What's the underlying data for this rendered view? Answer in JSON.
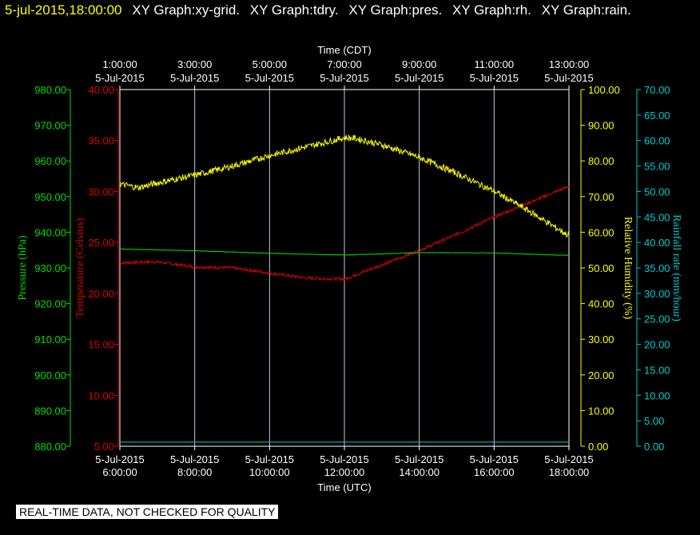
{
  "header": {
    "timestamp": "5-jul-2015,18:00:00",
    "graphs": [
      "XY Graph:xy-grid.",
      "XY Graph:tdry.",
      "XY Graph:pres.",
      "XY Graph:rh.",
      "XY Graph:rain."
    ]
  },
  "footer": {
    "notice": "REAL-TIME DATA, NOT CHECKED FOR QUALITY"
  },
  "colors": {
    "background": "#000000",
    "pressure": "#00dd00",
    "temperature": "#dd0000",
    "humidity": "#ffff00",
    "rain": "#00cccc",
    "grid": "#c8c8e0",
    "axis_text": "#ffffff"
  },
  "chart_data": {
    "type": "line",
    "title": "",
    "grid": true,
    "x_bottom": {
      "label": "Time (UTC)",
      "ticks": [
        {
          "hour": 6,
          "date": "5-Jul-2015",
          "time": "6:00:00"
        },
        {
          "hour": 8,
          "date": "5-Jul-2015",
          "time": "8:00:00"
        },
        {
          "hour": 10,
          "date": "5-Jul-2015",
          "time": "10:00:00"
        },
        {
          "hour": 12,
          "date": "5-Jul-2015",
          "time": "12:00:00"
        },
        {
          "hour": 14,
          "date": "5-Jul-2015",
          "time": "14:00:00"
        },
        {
          "hour": 16,
          "date": "5-Jul-2015",
          "time": "16:00:00"
        },
        {
          "hour": 18,
          "date": "5-Jul-2015",
          "time": "18:00:00"
        }
      ],
      "range": [
        6,
        18
      ]
    },
    "x_top": {
      "label": "Time (CDT)",
      "ticks": [
        {
          "time": "1:00:00",
          "date": "5-Jul-2015"
        },
        {
          "time": "3:00:00",
          "date": "5-Jul-2015"
        },
        {
          "time": "5:00:00",
          "date": "5-Jul-2015"
        },
        {
          "time": "7:00:00",
          "date": "5-Jul-2015"
        },
        {
          "time": "9:00:00",
          "date": "5-Jul-2015"
        },
        {
          "time": "11:00:00",
          "date": "5-Jul-2015"
        },
        {
          "time": "13:00:00",
          "date": "5-Jul-2015"
        }
      ]
    },
    "y_axes": {
      "pressure": {
        "label": "Pressure (hPa)",
        "range": [
          880,
          980
        ],
        "ticks": [
          "880.00",
          "890.00",
          "900.00",
          "910.00",
          "920.00",
          "930.00",
          "940.00",
          "950.00",
          "960.00",
          "970.00",
          "980.00"
        ]
      },
      "temperature": {
        "label": "Temperature (Celsius)",
        "range": [
          5,
          40
        ],
        "ticks": [
          "5.00",
          "10.00",
          "15.00",
          "20.00",
          "25.00",
          "30.00",
          "35.00",
          "40.00"
        ]
      },
      "humidity": {
        "label": "Relative Humidity (%)",
        "range": [
          0,
          100
        ],
        "ticks": [
          "0.00",
          "10.00",
          "20.00",
          "30.00",
          "40.00",
          "50.00",
          "60.00",
          "70.00",
          "80.00",
          "90.00",
          "100.00"
        ]
      },
      "rain": {
        "label": "Rainfall rate (mm/hour)",
        "range": [
          0,
          70
        ],
        "ticks": [
          "0.00",
          "5.00",
          "10.00",
          "15.00",
          "20.00",
          "25.00",
          "30.00",
          "35.00",
          "40.00",
          "45.00",
          "50.00",
          "55.00",
          "60.00",
          "65.00",
          "70.00"
        ]
      }
    },
    "series": [
      {
        "name": "tdry",
        "axis": "temperature",
        "points": [
          [
            6,
            23.0
          ],
          [
            7,
            23.1
          ],
          [
            8,
            22.6
          ],
          [
            9,
            22.5
          ],
          [
            10,
            22.0
          ],
          [
            11,
            21.5
          ],
          [
            12,
            21.4
          ],
          [
            13,
            22.8
          ],
          [
            14,
            24.2
          ],
          [
            15,
            25.8
          ],
          [
            16,
            27.5
          ],
          [
            17,
            29.0
          ],
          [
            18,
            30.5
          ]
        ]
      },
      {
        "name": "pres",
        "axis": "pressure",
        "points": [
          [
            6,
            935.3
          ],
          [
            8,
            934.8
          ],
          [
            10,
            934.1
          ],
          [
            12,
            933.6
          ],
          [
            14,
            934.3
          ],
          [
            16,
            934.2
          ],
          [
            18,
            933.5
          ]
        ]
      },
      {
        "name": "rh",
        "axis": "humidity",
        "points": [
          [
            6,
            73.5
          ],
          [
            6.5,
            72.5
          ],
          [
            7,
            73.8
          ],
          [
            8,
            76.0
          ],
          [
            9,
            78.5
          ],
          [
            10,
            81.5
          ],
          [
            11,
            84.0
          ],
          [
            12,
            86.5
          ],
          [
            12.3,
            86.3
          ],
          [
            13,
            84.5
          ],
          [
            14,
            81.0
          ],
          [
            15,
            76.5
          ],
          [
            16,
            71.5
          ],
          [
            17,
            65.5
          ],
          [
            18,
            59.0
          ]
        ]
      },
      {
        "name": "rain",
        "axis": "rain",
        "points": [
          [
            6,
            0.8
          ],
          [
            18,
            0.8
          ]
        ]
      }
    ]
  }
}
